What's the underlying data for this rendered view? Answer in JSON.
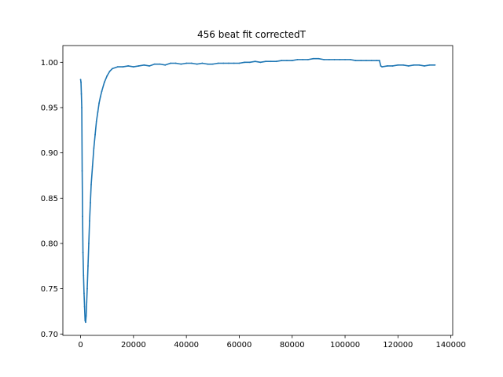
{
  "chart_data": {
    "type": "line",
    "title": "456 beat fit correctedT",
    "xlabel": "",
    "ylabel": "",
    "xlim": [
      -6700,
      140700
    ],
    "ylim": [
      0.6985,
      1.0185
    ],
    "x_ticks": [
      0,
      20000,
      40000,
      60000,
      80000,
      100000,
      120000,
      140000
    ],
    "x_tick_labels": [
      "0",
      "20000",
      "40000",
      "60000",
      "80000",
      "100000",
      "120000",
      "140000"
    ],
    "y_ticks": [
      0.7,
      0.75,
      0.8,
      0.85,
      0.9,
      0.95,
      1.0
    ],
    "y_tick_labels": [
      "0.70",
      "0.75",
      "0.80",
      "0.85",
      "0.90",
      "0.95",
      "1.00"
    ],
    "grid": false,
    "legend": "none",
    "series": [
      {
        "color": "#1f77b4",
        "x": [
          0,
          150,
          300,
          450,
          600,
          750,
          900,
          1100,
          1300,
          1500,
          1700,
          1900,
          2100,
          2300,
          2500,
          2800,
          3100,
          3400,
          3700,
          4000,
          4500,
          5000,
          5500,
          6000,
          6500,
          7000,
          7500,
          8000,
          9000,
          10000,
          11000,
          12000,
          14000,
          16000,
          18000,
          20000,
          22000,
          24000,
          26000,
          28000,
          30000,
          32000,
          34000,
          36000,
          38000,
          40000,
          42000,
          44000,
          46000,
          48000,
          50000,
          52000,
          54000,
          56000,
          58000,
          60000,
          62000,
          64000,
          66000,
          68000,
          70000,
          72000,
          74000,
          76000,
          78000,
          80000,
          82000,
          84000,
          86000,
          88000,
          90000,
          92000,
          94000,
          96000,
          98000,
          100000,
          102000,
          104000,
          106000,
          108000,
          110000,
          112000,
          113000,
          113500,
          114000,
          116000,
          118000,
          120000,
          122000,
          124000,
          126000,
          128000,
          130000,
          132000,
          134000
        ],
        "y": [
          0.981,
          0.978,
          0.965,
          0.95,
          0.88,
          0.83,
          0.79,
          0.765,
          0.745,
          0.73,
          0.715,
          0.713,
          0.72,
          0.735,
          0.75,
          0.775,
          0.8,
          0.825,
          0.845,
          0.865,
          0.885,
          0.905,
          0.92,
          0.935,
          0.945,
          0.955,
          0.962,
          0.968,
          0.978,
          0.985,
          0.99,
          0.993,
          0.995,
          0.995,
          0.996,
          0.995,
          0.996,
          0.997,
          0.996,
          0.998,
          0.998,
          0.997,
          0.999,
          0.999,
          0.998,
          0.999,
          0.999,
          0.998,
          0.999,
          0.998,
          0.998,
          0.999,
          0.999,
          0.999,
          0.999,
          0.999,
          1.0,
          1.0,
          1.001,
          1.0,
          1.001,
          1.001,
          1.001,
          1.002,
          1.002,
          1.002,
          1.003,
          1.003,
          1.003,
          1.004,
          1.004,
          1.003,
          1.003,
          1.003,
          1.003,
          1.003,
          1.003,
          1.002,
          1.002,
          1.002,
          1.002,
          1.002,
          1.002,
          0.996,
          0.995,
          0.996,
          0.996,
          0.997,
          0.997,
          0.996,
          0.997,
          0.997,
          0.996,
          0.997,
          0.997
        ]
      }
    ]
  }
}
